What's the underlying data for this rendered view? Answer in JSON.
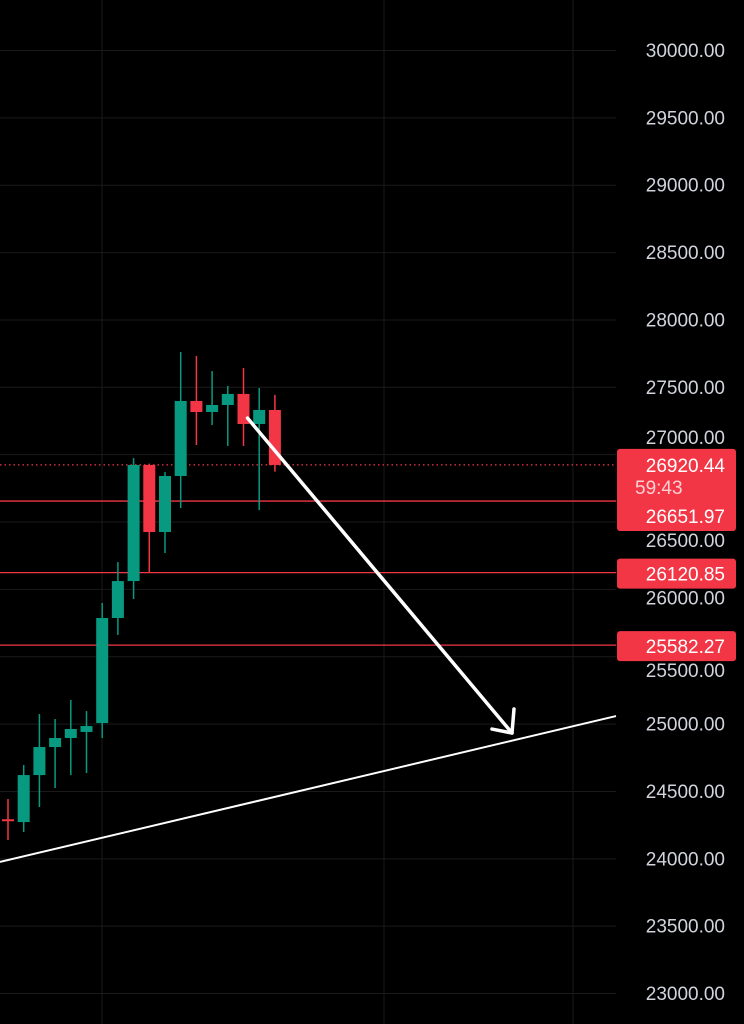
{
  "chart_data": {
    "type": "candlestick",
    "title": "",
    "ylim": [
      23000,
      30000
    ],
    "y_ticks": [
      "30000.00",
      "29500.00",
      "29000.00",
      "28500.00",
      "28000.00",
      "27500.00",
      "27000.00",
      "26500.00",
      "26000.00",
      "25500.00",
      "25000.00",
      "24500.00",
      "24000.00",
      "23500.00",
      "23000.00"
    ],
    "y_tick_values": [
      30000,
      29500,
      29000,
      28500,
      28000,
      27500,
      27000,
      26500,
      26000,
      25500,
      25000,
      24500,
      24000,
      23500,
      23000
    ],
    "grid": true,
    "colors": {
      "up": "#089981",
      "down": "#f23645",
      "line": "#ffffff",
      "level": "#f23645",
      "axis_text": "#d1d4dc",
      "grid": "#1a1a1a"
    },
    "candles": [
      {
        "o": 24290,
        "h": 24440,
        "l": 24136,
        "c": 24280
      },
      {
        "o": 24269,
        "h": 24693,
        "l": 24195,
        "c": 24618
      },
      {
        "o": 24618,
        "h": 25071,
        "l": 24381,
        "c": 24826
      },
      {
        "o": 24826,
        "h": 25034,
        "l": 24522,
        "c": 24893
      },
      {
        "o": 24893,
        "h": 25175,
        "l": 24618,
        "c": 24960
      },
      {
        "o": 24938,
        "h": 25093,
        "l": 24633,
        "c": 24982
      },
      {
        "o": 25004,
        "h": 25895,
        "l": 24893,
        "c": 25784
      },
      {
        "o": 25784,
        "h": 26199,
        "l": 25658,
        "c": 26058
      },
      {
        "o": 26058,
        "h": 26971,
        "l": 25925,
        "c": 26920
      },
      {
        "o": 26920,
        "h": 26930,
        "l": 26125,
        "c": 26422
      },
      {
        "o": 26422,
        "h": 26867,
        "l": 26266,
        "c": 26838
      },
      {
        "o": 26838,
        "h": 27758,
        "l": 26600,
        "c": 27395
      },
      {
        "o": 27395,
        "h": 27729,
        "l": 27068,
        "c": 27313
      },
      {
        "o": 27313,
        "h": 27617,
        "l": 27216,
        "c": 27365
      },
      {
        "o": 27365,
        "h": 27506,
        "l": 27061,
        "c": 27447
      },
      {
        "o": 27447,
        "h": 27640,
        "l": 27061,
        "c": 27224
      },
      {
        "o": 27224,
        "h": 27491,
        "l": 26585,
        "c": 27328
      },
      {
        "o": 27328,
        "h": 27440,
        "l": 26870,
        "c": 26920
      }
    ],
    "current_price": {
      "value": 26920.44,
      "label": "26920.44",
      "countdown": "59:43"
    },
    "levels": [
      {
        "value": 26651.97,
        "label": "26651.97"
      },
      {
        "value": 26120.85,
        "label": "26120.85"
      },
      {
        "value": 25582.27,
        "label": "25582.27"
      }
    ],
    "trendline": {
      "from_price": 23973,
      "to_price": 25056
    },
    "arrow": {
      "from_candle": 15,
      "from_price": 27268,
      "to_price": 24930
    }
  }
}
